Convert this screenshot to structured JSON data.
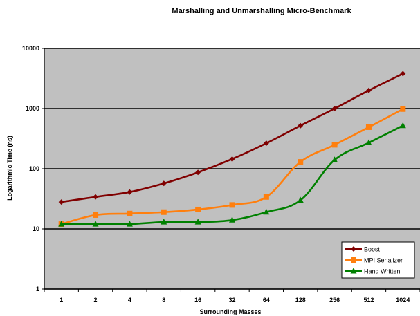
{
  "chart_data": {
    "type": "line",
    "title": "Marshalling and Unmarshalling Micro-Benchmark",
    "xlabel": "Surrounding Masses",
    "ylabel": "Logarithmic Time (ns)",
    "categories": [
      "1",
      "2",
      "4",
      "8",
      "16",
      "32",
      "64",
      "128",
      "256",
      "512",
      "1024"
    ],
    "yscale": "log",
    "ylim": [
      1,
      10000
    ],
    "yticks": [
      "1",
      "10",
      "100",
      "1000",
      "10000"
    ],
    "grid": true,
    "legend_position": "bottom-right",
    "plot_background": "#c0c0c0",
    "series": [
      {
        "name": "Boost",
        "color": "#800000",
        "marker": "diamond",
        "values": [
          28,
          34,
          41,
          57,
          87,
          145,
          265,
          520,
          1000,
          2000,
          3800
        ]
      },
      {
        "name": "MPI Serializer",
        "color": "#ff7f0e",
        "marker": "square",
        "values": [
          12,
          17,
          18,
          19,
          21,
          25,
          34,
          130,
          250,
          490,
          980
        ]
      },
      {
        "name": "Hand Written",
        "color": "#008000",
        "marker": "triangle",
        "values": [
          12,
          12,
          12,
          13,
          13,
          14,
          19,
          30,
          140,
          270,
          520
        ]
      }
    ]
  }
}
